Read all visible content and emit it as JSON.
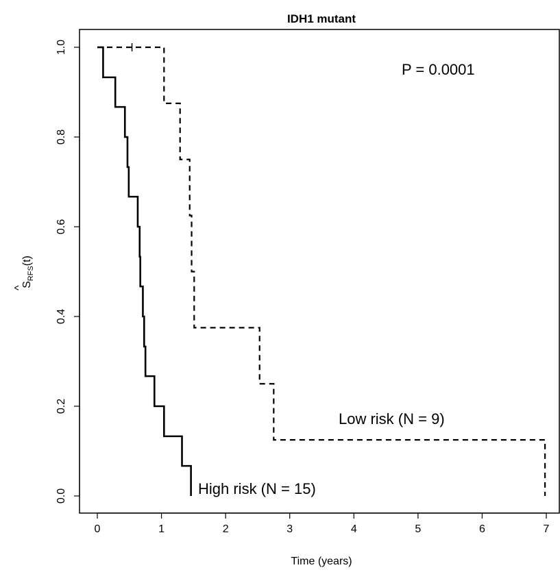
{
  "chart_data": {
    "type": "line",
    "subtype": "kaplan-meier step",
    "title": "IDH1 mutant",
    "xlabel": "Time (years)",
    "ylabel_main": "S",
    "ylabel_hat": "^",
    "ylabel_sub": "RFS",
    "ylabel_arg": "(t)",
    "xlim": [
      0,
      7
    ],
    "ylim": [
      0,
      1
    ],
    "x_ticks": [
      0,
      1,
      2,
      3,
      4,
      5,
      6,
      7
    ],
    "x_tick_labels": [
      "0",
      "1",
      "2",
      "3",
      "4",
      "5",
      "6",
      "7"
    ],
    "y_ticks": [
      0,
      0.2,
      0.4,
      0.6,
      0.8,
      1.0
    ],
    "y_tick_labels": [
      "0.0",
      "0.2",
      "0.4",
      "0.6",
      "0.8",
      "1.0"
    ],
    "grid": false,
    "annotations": {
      "p_value": "P = 0.0001"
    },
    "series": [
      {
        "name": "High risk (N = 15)",
        "line_style": "solid",
        "color": "#000000",
        "steps": [
          [
            0,
            1.0
          ],
          [
            0.09,
            0.933
          ],
          [
            0.28,
            0.867
          ],
          [
            0.43,
            0.8
          ],
          [
            0.47,
            0.733
          ],
          [
            0.49,
            0.667
          ],
          [
            0.63,
            0.6
          ],
          [
            0.66,
            0.533
          ],
          [
            0.67,
            0.467
          ],
          [
            0.71,
            0.4
          ],
          [
            0.73,
            0.333
          ],
          [
            0.75,
            0.267
          ],
          [
            0.89,
            0.2
          ],
          [
            1.04,
            0.133
          ],
          [
            1.32,
            0.067
          ],
          [
            1.46,
            0.0
          ]
        ],
        "end_x": 1.46,
        "censored": []
      },
      {
        "name": "Low risk (N = 9)",
        "line_style": "dashed",
        "color": "#000000",
        "steps": [
          [
            0,
            1.0
          ],
          [
            1.04,
            0.875
          ],
          [
            1.29,
            0.75
          ],
          [
            1.44,
            0.625
          ],
          [
            1.47,
            0.5
          ],
          [
            1.51,
            0.375
          ],
          [
            2.53,
            0.25
          ],
          [
            2.75,
            0.125
          ],
          [
            6.98,
            0.0
          ]
        ],
        "end_x": 6.98,
        "censored": [
          [
            0.54,
            1.0
          ]
        ]
      }
    ]
  }
}
